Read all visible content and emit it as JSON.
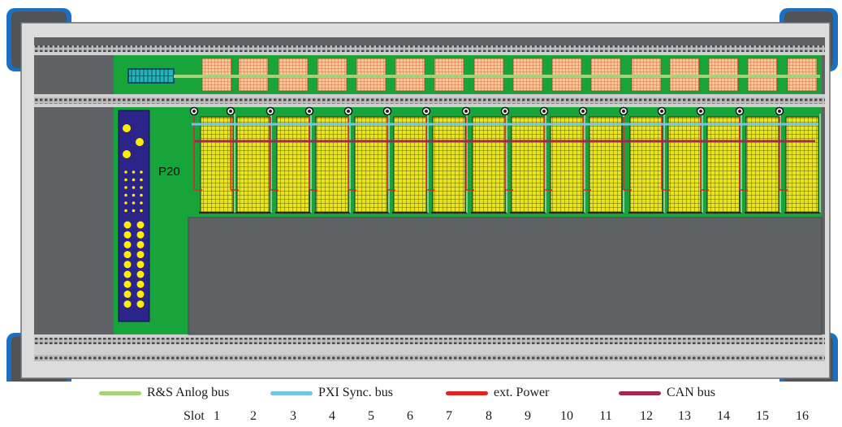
{
  "connector_label": "P20",
  "legend": [
    {
      "label": "R&S Anlog bus",
      "color": "#a8d27a"
    },
    {
      "label": "PXI Sync. bus",
      "color": "#72c4e8"
    },
    {
      "label": "ext. Power",
      "color": "#e02424"
    },
    {
      "label": "CAN bus",
      "color": "#a3284e"
    }
  ],
  "slot_label": "Slot",
  "slots": [
    "1",
    "2",
    "3",
    "4",
    "5",
    "6",
    "7",
    "8",
    "9",
    "10",
    "11",
    "12",
    "13",
    "14",
    "15",
    "16"
  ],
  "colors": {
    "pcb": "#17a53b",
    "grid": "#e8e51e",
    "connector_top": "#f5c7a0",
    "p20": "#2b2589",
    "p20_pins": "#ffee00",
    "chassis": "#5f6265",
    "frame": "#dcdcdc",
    "corner": "#1d6fc4"
  }
}
